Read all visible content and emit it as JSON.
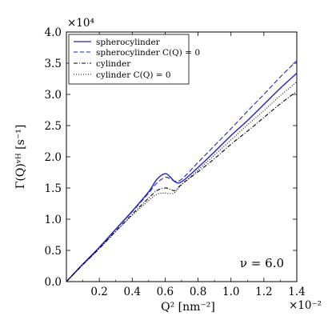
{
  "chart_data": {
    "type": "line",
    "title": "",
    "xlabel": "Q² [nm⁻²]",
    "ylabel": "Γ(Q)ᵛᴴ [s⁻¹]",
    "x_multiplier": "×10⁻²",
    "y_multiplier": "×10⁴",
    "xlim": [
      0.0,
      1.4
    ],
    "ylim": [
      0.0,
      4.0
    ],
    "x_ticks": [
      "0.2",
      "0.4",
      "0.6",
      "0.8",
      "1.0",
      "1.2",
      "1.4"
    ],
    "y_ticks": [
      "0.0",
      "0.5",
      "1.0",
      "1.5",
      "2.0",
      "2.5",
      "3.0",
      "3.5",
      "4.0"
    ],
    "grid": false,
    "legend_position": "top-left",
    "annotation": "ν = 6.0",
    "series": [
      {
        "name": "spherocylinder",
        "color": "#1f1fd0",
        "style": "solid",
        "x": [
          0.0,
          0.1,
          0.2,
          0.3,
          0.4,
          0.5,
          0.55,
          0.6,
          0.63,
          0.66,
          0.7,
          0.8,
          0.9,
          1.0,
          1.1,
          1.2,
          1.3,
          1.4
        ],
        "y": [
          0.0,
          0.28,
          0.55,
          0.84,
          1.13,
          1.44,
          1.64,
          1.73,
          1.68,
          1.6,
          1.6,
          1.83,
          2.08,
          2.34,
          2.58,
          2.84,
          3.1,
          3.34
        ]
      },
      {
        "name": "spherocylinder C(Q) = 0",
        "color": "#1f1fd0",
        "style": "dashed",
        "x": [
          0.0,
          0.1,
          0.2,
          0.3,
          0.4,
          0.5,
          0.55,
          0.6,
          0.63,
          0.66,
          0.7,
          0.8,
          0.9,
          1.0,
          1.1,
          1.2,
          1.3,
          1.4
        ],
        "y": [
          0.0,
          0.28,
          0.55,
          0.84,
          1.12,
          1.42,
          1.58,
          1.67,
          1.65,
          1.61,
          1.64,
          1.91,
          2.18,
          2.45,
          2.73,
          3.0,
          3.28,
          3.54
        ]
      },
      {
        "name": "cylinder",
        "color": "#000000",
        "style": "dashdot",
        "x": [
          0.0,
          0.1,
          0.2,
          0.3,
          0.4,
          0.5,
          0.55,
          0.6,
          0.63,
          0.66,
          0.7,
          0.8,
          0.9,
          1.0,
          1.1,
          1.2,
          1.3,
          1.4
        ],
        "y": [
          0.0,
          0.27,
          0.53,
          0.81,
          1.08,
          1.34,
          1.46,
          1.5,
          1.48,
          1.46,
          1.56,
          1.76,
          1.97,
          2.2,
          2.41,
          2.63,
          2.85,
          3.05
        ]
      },
      {
        "name": "cylinder C(Q) = 0",
        "color": "#000000",
        "style": "dotted",
        "x": [
          0.0,
          0.1,
          0.2,
          0.3,
          0.4,
          0.5,
          0.55,
          0.6,
          0.63,
          0.66,
          0.7,
          0.8,
          0.9,
          1.0,
          1.1,
          1.2,
          1.3,
          1.4
        ],
        "y": [
          0.0,
          0.27,
          0.53,
          0.8,
          1.06,
          1.3,
          1.4,
          1.42,
          1.41,
          1.43,
          1.55,
          1.79,
          2.03,
          2.27,
          2.51,
          2.74,
          2.98,
          3.2
        ]
      }
    ],
    "legend_entries": [
      "spherocylinder",
      "spherocylinder C(Q) = 0",
      "cylinder",
      "cylinder C(Q) = 0"
    ]
  }
}
